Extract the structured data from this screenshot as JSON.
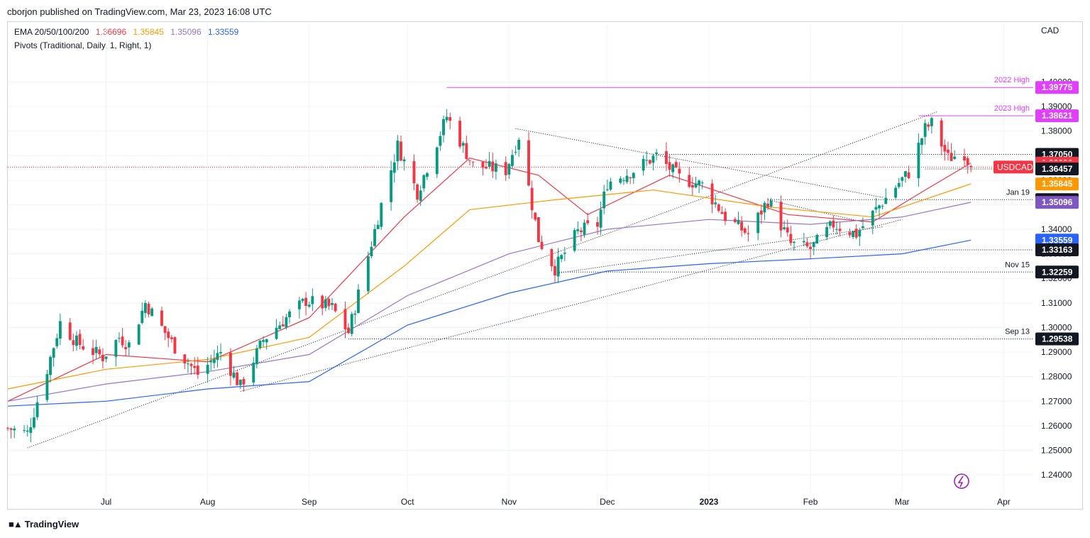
{
  "header": {
    "text": "cborjon published on TradingView.com, Mar 23, 2023 16:08 UTC"
  },
  "legend": {
    "ema_label": "EMA 20/50/100/200",
    "ema_values": [
      "1.36696",
      "1.35845",
      "1.35096",
      "1.33559"
    ],
    "pivots_label": "Pivots (Traditional, Daily, 1, Right, 1)"
  },
  "footer": {
    "brand": "TradingView"
  },
  "colors": {
    "up": "#089981",
    "down": "#f23645",
    "ema20": "#f23645",
    "ema50": "#ff9800",
    "ema100": "#9575cd",
    "ema200": "#2962ff",
    "pivot_high": "#e040fb",
    "grid": "#f0f3fa"
  },
  "chart_data": {
    "type": "candlestick",
    "symbol": "USDCAD",
    "currency": "CAD",
    "ylim": [
      1.2328,
      1.4085
    ],
    "y_ticks": [
      "1.24000",
      "1.25000",
      "1.26000",
      "1.27000",
      "1.28000",
      "1.29000",
      "1.30000",
      "1.31000",
      "1.32000",
      "1.33000",
      "1.34000",
      "1.35000",
      "1.36000",
      "1.37000",
      "1.38000",
      "1.39000",
      "1.40000"
    ],
    "x_labels": [
      "Jul",
      "Aug",
      "Sep",
      "Oct",
      "Nov",
      "Dec",
      "2023",
      "Feb",
      "Mar",
      "Apr"
    ],
    "x_label_dates": [
      "2022-07-01",
      "2022-08-01",
      "2022-09-01",
      "2022-10-01",
      "2022-11-01",
      "2022-12-01",
      "2023-01-01",
      "2023-02-01",
      "2023-03-01",
      "2023-04-01"
    ],
    "x_range": [
      "2022-06-01",
      "2023-04-10"
    ],
    "price_tags": [
      {
        "value": 1.39775,
        "text": "1.39775",
        "color": "#e040fb",
        "label": "2022 High"
      },
      {
        "value": 1.38621,
        "text": "1.38621",
        "color": "#e040fb",
        "label": "2023 High"
      },
      {
        "value": 1.3705,
        "text": "1.37050",
        "color": "#131722",
        "label": ""
      },
      {
        "value": 1.36696,
        "text": "1.36696",
        "color": "#f23645",
        "label": ""
      },
      {
        "value": 1.36532,
        "text": "1.36532",
        "color": "#f23645",
        "label": "USDCAD"
      },
      {
        "value": 1.36457,
        "text": "1.36457",
        "color": "#131722",
        "label": ""
      },
      {
        "value": 1.35845,
        "text": "1.35845",
        "color": "#ff9800",
        "label": ""
      },
      {
        "value": 1.35207,
        "text": "1.35207",
        "color": "#131722",
        "label": "Jan 19"
      },
      {
        "value": 1.35096,
        "text": "1.35096",
        "color": "#7e57c2",
        "label": ""
      },
      {
        "value": 1.33559,
        "text": "1.33559",
        "color": "#2962ff",
        "label": ""
      },
      {
        "value": 1.33163,
        "text": "1.33163",
        "color": "#131722",
        "label": ""
      },
      {
        "value": 1.32259,
        "text": "1.32259",
        "color": "#131722",
        "label": "Nov 15"
      },
      {
        "value": 1.29538,
        "text": "1.29538",
        "color": "#131722",
        "label": "Sep 13"
      }
    ],
    "close_anchors": [
      [
        "2022-06-01",
        1.259
      ],
      [
        "2022-06-07",
        1.257
      ],
      [
        "2022-06-13",
        1.283
      ],
      [
        "2022-06-17",
        1.302
      ],
      [
        "2022-06-22",
        1.294
      ],
      [
        "2022-06-30",
        1.288
      ],
      [
        "2022-07-05",
        1.296
      ],
      [
        "2022-07-08",
        1.293
      ],
      [
        "2022-07-13",
        1.31
      ],
      [
        "2022-07-15",
        1.306
      ],
      [
        "2022-07-22",
        1.292
      ],
      [
        "2022-07-29",
        1.281
      ],
      [
        "2022-08-05",
        1.29
      ],
      [
        "2022-08-11",
        1.276
      ],
      [
        "2022-08-18",
        1.295
      ],
      [
        "2022-08-25",
        1.304
      ],
      [
        "2022-08-31",
        1.311
      ],
      [
        "2022-09-08",
        1.308
      ],
      [
        "2022-09-13",
        1.298
      ],
      [
        "2022-09-23",
        1.35
      ],
      [
        "2022-09-28",
        1.374
      ],
      [
        "2022-10-04",
        1.355
      ],
      [
        "2022-10-13",
        1.386
      ],
      [
        "2022-10-21",
        1.366
      ],
      [
        "2022-10-31",
        1.364
      ],
      [
        "2022-11-04",
        1.378
      ],
      [
        "2022-11-10",
        1.336
      ],
      [
        "2022-11-15",
        1.324
      ],
      [
        "2022-11-22",
        1.339
      ],
      [
        "2022-11-28",
        1.342
      ],
      [
        "2022-12-01",
        1.359
      ],
      [
        "2022-12-09",
        1.364
      ],
      [
        "2022-12-16",
        1.37
      ],
      [
        "2022-12-23",
        1.361
      ],
      [
        "2022-12-30",
        1.358
      ],
      [
        "2023-01-06",
        1.345
      ],
      [
        "2023-01-13",
        1.338
      ],
      [
        "2023-01-19",
        1.352
      ],
      [
        "2023-01-26",
        1.334
      ],
      [
        "2023-02-01",
        1.332
      ],
      [
        "2023-02-08",
        1.342
      ],
      [
        "2023-02-15",
        1.338
      ],
      [
        "2023-02-21",
        1.348
      ],
      [
        "2023-02-28",
        1.359
      ],
      [
        "2023-03-03",
        1.363
      ],
      [
        "2023-03-08",
        1.381
      ],
      [
        "2023-03-10",
        1.383
      ],
      [
        "2023-03-15",
        1.369
      ],
      [
        "2023-03-20",
        1.371
      ],
      [
        "2023-03-22",
        1.3653
      ]
    ],
    "ema": {
      "EMA20": {
        "color": "#f23645",
        "points": [
          [
            "2022-06-01",
            1.27
          ],
          [
            "2022-07-01",
            1.289
          ],
          [
            "2022-08-01",
            1.286
          ],
          [
            "2022-09-01",
            1.304
          ],
          [
            "2022-09-30",
            1.345
          ],
          [
            "2022-10-20",
            1.369
          ],
          [
            "2022-11-10",
            1.362
          ],
          [
            "2022-11-25",
            1.346
          ],
          [
            "2022-12-20",
            1.362
          ],
          [
            "2023-01-25",
            1.346
          ],
          [
            "2023-02-20",
            1.343
          ],
          [
            "2023-03-08",
            1.356
          ],
          [
            "2023-03-22",
            1.367
          ]
        ]
      },
      "EMA50": {
        "color": "#ff9800",
        "points": [
          [
            "2022-06-01",
            1.275
          ],
          [
            "2022-07-01",
            1.283
          ],
          [
            "2022-08-01",
            1.287
          ],
          [
            "2022-09-01",
            1.296
          ],
          [
            "2022-09-30",
            1.325
          ],
          [
            "2022-10-20",
            1.348
          ],
          [
            "2022-11-15",
            1.352
          ],
          [
            "2022-12-15",
            1.356
          ],
          [
            "2023-01-20",
            1.349
          ],
          [
            "2023-02-20",
            1.345
          ],
          [
            "2023-03-22",
            1.3585
          ]
        ]
      },
      "EMA100": {
        "color": "#9575cd",
        "points": [
          [
            "2022-06-01",
            1.27
          ],
          [
            "2022-07-01",
            1.277
          ],
          [
            "2022-08-01",
            1.282
          ],
          [
            "2022-09-01",
            1.289
          ],
          [
            "2022-10-01",
            1.313
          ],
          [
            "2022-11-01",
            1.33
          ],
          [
            "2022-12-01",
            1.34
          ],
          [
            "2023-01-01",
            1.344
          ],
          [
            "2023-02-01",
            1.342
          ],
          [
            "2023-03-01",
            1.345
          ],
          [
            "2023-03-22",
            1.351
          ]
        ]
      },
      "EMA200": {
        "color": "#2962ff",
        "points": [
          [
            "2022-06-01",
            1.268
          ],
          [
            "2022-07-01",
            1.27
          ],
          [
            "2022-08-01",
            1.275
          ],
          [
            "2022-09-01",
            1.278
          ],
          [
            "2022-10-01",
            1.301
          ],
          [
            "2022-11-01",
            1.314
          ],
          [
            "2022-12-01",
            1.323
          ],
          [
            "2023-01-01",
            1.326
          ],
          [
            "2023-02-01",
            1.328
          ],
          [
            "2023-03-01",
            1.33
          ],
          [
            "2023-03-22",
            1.3356
          ]
        ]
      }
    },
    "horizontal_levels": [
      {
        "from": "2022-10-13",
        "to": "2023-04-10",
        "value": 1.39775,
        "style": "solid",
        "color": "#e040fb"
      },
      {
        "from": "2023-03-06",
        "to": "2023-04-10",
        "value": 1.38621,
        "style": "solid",
        "color": "#e040fb"
      },
      {
        "from": "2022-12-16",
        "to": "2023-04-10",
        "value": 1.3705,
        "style": "dotted",
        "color": "#131722"
      },
      {
        "from": "2023-03-08",
        "to": "2023-04-10",
        "value": 1.36457,
        "style": "dotted",
        "color": "#131722"
      },
      {
        "from": "2023-01-19",
        "to": "2023-04-10",
        "value": 1.35207,
        "style": "dotted",
        "color": "#131722"
      },
      {
        "from": "2022-11-22",
        "to": "2023-04-10",
        "value": 1.33163,
        "style": "dotted",
        "color": "#131722"
      },
      {
        "from": "2022-11-15",
        "to": "2023-04-10",
        "value": 1.32259,
        "style": "dotted",
        "color": "#131722"
      },
      {
        "from": "2022-09-13",
        "to": "2023-04-10",
        "value": 1.29538,
        "style": "dotted",
        "color": "#131722"
      }
    ],
    "trendlines": [
      {
        "from": [
          "2022-06-07",
          1.251
        ],
        "to": [
          "2023-03-12",
          1.388
        ]
      },
      {
        "from": [
          "2022-08-11",
          1.274
        ],
        "to": [
          "2023-03-01",
          1.344
        ]
      },
      {
        "from": [
          "2022-11-03",
          1.381
        ],
        "to": [
          "2023-02-23",
          1.353
        ]
      },
      {
        "from": [
          "2022-11-15",
          1.322
        ],
        "to": [
          "2023-02-23",
          1.341
        ]
      },
      {
        "from": [
          "2023-01-19",
          1.352
        ],
        "to": [
          "2023-02-17",
          1.343
        ]
      }
    ]
  }
}
